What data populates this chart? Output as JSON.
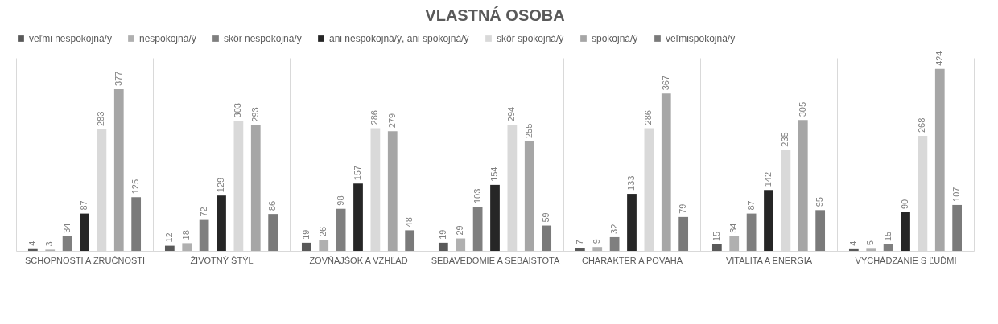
{
  "chart_data": {
    "type": "bar",
    "title": "VLASTNÁ OSOBA",
    "categories": [
      "SCHOPNOSTI A ZRUČNOSTI",
      "ŽIVOTNÝ ŠTÝL",
      "ZOVŇAJŠOK A VZHĽAD",
      "SEBAVEDOMIE A SEBAISTOTA",
      "CHARAKTER A POVAHA",
      "VITALITA A ENERGIA",
      "VYCHÁDZANIE S ĽUĎMI"
    ],
    "series": [
      {
        "name": "veľmi nespokojná/ý",
        "color": "#595959",
        "values": [
          4,
          12,
          19,
          19,
          7,
          15,
          4
        ]
      },
      {
        "name": "nespokojná/ý",
        "color": "#b0b0b0",
        "values": [
          3,
          18,
          26,
          29,
          9,
          34,
          5
        ]
      },
      {
        "name": "skôr nespokojná/ý",
        "color": "#7f7f7f",
        "values": [
          34,
          72,
          98,
          103,
          32,
          87,
          15
        ]
      },
      {
        "name": "ani nespokojná/ý, ani spokojná/ý",
        "color": "#262626",
        "values": [
          87,
          129,
          157,
          154,
          133,
          142,
          90
        ]
      },
      {
        "name": "skôr spokojná/ý",
        "color": "#d9d9d9",
        "values": [
          283,
          303,
          286,
          294,
          286,
          235,
          268
        ]
      },
      {
        "name": "spokojná/ý",
        "color": "#a6a6a6",
        "values": [
          377,
          293,
          279,
          255,
          367,
          305,
          424
        ]
      },
      {
        "name": "veľmispokojná/ý",
        "color": "#7a7a7a",
        "values": [
          125,
          86,
          48,
          59,
          79,
          95,
          107
        ]
      }
    ],
    "data_labels": true,
    "legend": "top",
    "grid": "x"
  }
}
